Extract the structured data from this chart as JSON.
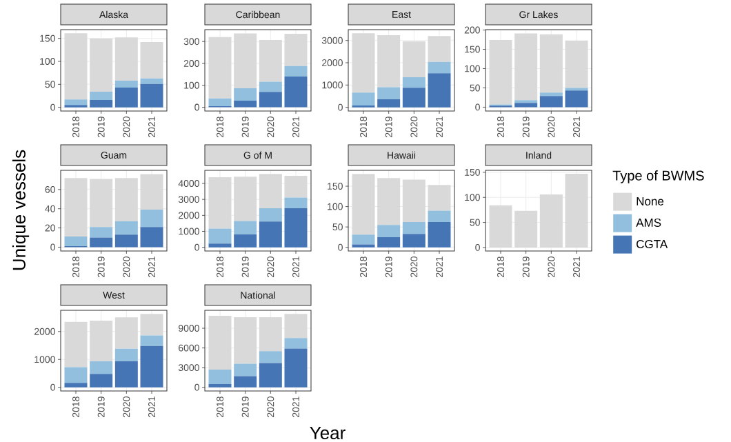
{
  "chart_data": [
    {
      "type": "bar",
      "title": "Alaska",
      "categories": [
        "2018",
        "2019",
        "2020",
        "2021"
      ],
      "stacked": true,
      "grid": true,
      "ylim": [
        -8,
        169
      ],
      "yticks": [
        0,
        50,
        100,
        150
      ],
      "series": [
        {
          "color": "#4575b4",
          "values": [
            5,
            16,
            43,
            51
          ]
        },
        {
          "color": "#92bfdd",
          "values": [
            12,
            18,
            15,
            12
          ]
        },
        {
          "color": "#d9d9d9",
          "values": [
            144,
            116,
            94,
            79
          ]
        }
      ]
    },
    {
      "type": "bar",
      "title": "Caribbean",
      "categories": [
        "2018",
        "2019",
        "2020",
        "2021"
      ],
      "stacked": true,
      "grid": true,
      "ylim": [
        -17,
        354
      ],
      "yticks": [
        0,
        100,
        200,
        300
      ],
      "series": [
        {
          "color": "#4575b4",
          "values": [
            5,
            30,
            70,
            140
          ]
        },
        {
          "color": "#92bfdd",
          "values": [
            35,
            57,
            47,
            48
          ]
        },
        {
          "color": "#d9d9d9",
          "values": [
            280,
            250,
            190,
            147
          ]
        }
      ]
    },
    {
      "type": "bar",
      "title": "East",
      "categories": [
        "2018",
        "2019",
        "2020",
        "2021"
      ],
      "stacked": true,
      "grid": true,
      "ylim": [
        -166,
        3486
      ],
      "yticks": [
        0,
        1000,
        2000,
        3000
      ],
      "series": [
        {
          "color": "#4575b4",
          "values": [
            80,
            360,
            880,
            1530
          ]
        },
        {
          "color": "#92bfdd",
          "values": [
            580,
            540,
            470,
            510
          ]
        },
        {
          "color": "#d9d9d9",
          "values": [
            2660,
            2340,
            1610,
            1160
          ]
        }
      ]
    },
    {
      "type": "bar",
      "title": "Gr Lakes",
      "categories": [
        "2018",
        "2019",
        "2020",
        "2021"
      ],
      "stacked": true,
      "grid": true,
      "ylim": [
        -10,
        201
      ],
      "yticks": [
        0,
        50,
        100,
        150,
        200
      ],
      "series": [
        {
          "color": "#4575b4",
          "values": [
            4,
            11,
            29,
            43
          ]
        },
        {
          "color": "#92bfdd",
          "values": [
            3,
            7,
            9,
            7
          ]
        },
        {
          "color": "#d9d9d9",
          "values": [
            167,
            173,
            151,
            123
          ]
        }
      ]
    },
    {
      "type": "bar",
      "title": "Guam",
      "ylabel": "Unique vessels",
      "categories": [
        "2018",
        "2019",
        "2020",
        "2021"
      ],
      "stacked": true,
      "grid": true,
      "ylim": [
        -4,
        80
      ],
      "yticks": [
        0,
        20,
        40,
        60
      ],
      "series": [
        {
          "color": "#4575b4",
          "values": [
            1,
            10,
            13,
            21
          ]
        },
        {
          "color": "#92bfdd",
          "values": [
            10,
            11,
            14,
            18
          ]
        },
        {
          "color": "#d9d9d9",
          "values": [
            61,
            50,
            45,
            37
          ]
        }
      ]
    },
    {
      "type": "bar",
      "title": "G of M",
      "categories": [
        "2018",
        "2019",
        "2020",
        "2021"
      ],
      "stacked": true,
      "grid": true,
      "ylim": [
        -230,
        4820
      ],
      "yticks": [
        0,
        1000,
        2000,
        3000,
        4000
      ],
      "series": [
        {
          "color": "#4575b4",
          "values": [
            230,
            810,
            1610,
            2450
          ]
        },
        {
          "color": "#92bfdd",
          "values": [
            940,
            840,
            840,
            670
          ]
        },
        {
          "color": "#d9d9d9",
          "values": [
            3220,
            2770,
            2140,
            1350
          ]
        }
      ]
    },
    {
      "type": "bar",
      "title": "Hawaii",
      "categories": [
        "2018",
        "2019",
        "2020",
        "2021"
      ],
      "stacked": true,
      "grid": true,
      "ylim": [
        -9,
        189
      ],
      "yticks": [
        0,
        50,
        100,
        150
      ],
      "series": [
        {
          "color": "#4575b4",
          "values": [
            7,
            25,
            33,
            62
          ]
        },
        {
          "color": "#92bfdd",
          "values": [
            24,
            30,
            29,
            28
          ]
        },
        {
          "color": "#d9d9d9",
          "values": [
            149,
            115,
            104,
            63
          ]
        }
      ]
    },
    {
      "type": "bar",
      "title": "Inland",
      "legend_title": "Type of BWMS",
      "legend": "right",
      "categories": [
        "2018",
        "2019",
        "2020",
        "2021"
      ],
      "stacked": true,
      "grid": true,
      "ylim": [
        -7,
        154
      ],
      "yticks": [
        0,
        50,
        100,
        150
      ],
      "series": [
        {
          "name": "CGTA",
          "color": "#4575b4",
          "values": [
            0,
            0,
            0,
            0
          ]
        },
        {
          "name": "AMS",
          "color": "#92bfdd",
          "values": [
            0,
            0,
            0,
            0
          ]
        },
        {
          "name": "None",
          "color": "#d9d9d9",
          "values": [
            84,
            73,
            106,
            147
          ]
        }
      ]
    },
    {
      "type": "bar",
      "title": "West",
      "categories": [
        "2018",
        "2019",
        "2020",
        "2021"
      ],
      "stacked": true,
      "grid": true,
      "ylim": [
        -132,
        2762
      ],
      "yticks": [
        0,
        1000,
        2000
      ],
      "series": [
        {
          "color": "#4575b4",
          "values": [
            160,
            480,
            930,
            1480
          ]
        },
        {
          "color": "#92bfdd",
          "values": [
            560,
            450,
            450,
            380
          ]
        },
        {
          "color": "#d9d9d9",
          "values": [
            1630,
            1460,
            1130,
            770
          ]
        }
      ]
    },
    {
      "type": "bar",
      "title": "National",
      "xlabel": "Year",
      "categories": [
        "2018",
        "2019",
        "2020",
        "2021"
      ],
      "stacked": true,
      "grid": true,
      "ylim": [
        -559,
        11739
      ],
      "yticks": [
        0,
        3000,
        6000,
        9000
      ],
      "series": [
        {
          "color": "#4575b4",
          "values": [
            500,
            1700,
            3700,
            5900
          ]
        },
        {
          "color": "#92bfdd",
          "values": [
            2200,
            1900,
            1800,
            1600
          ]
        },
        {
          "color": "#d9d9d9",
          "values": [
            8200,
            7100,
            5200,
            3700
          ]
        }
      ]
    }
  ]
}
